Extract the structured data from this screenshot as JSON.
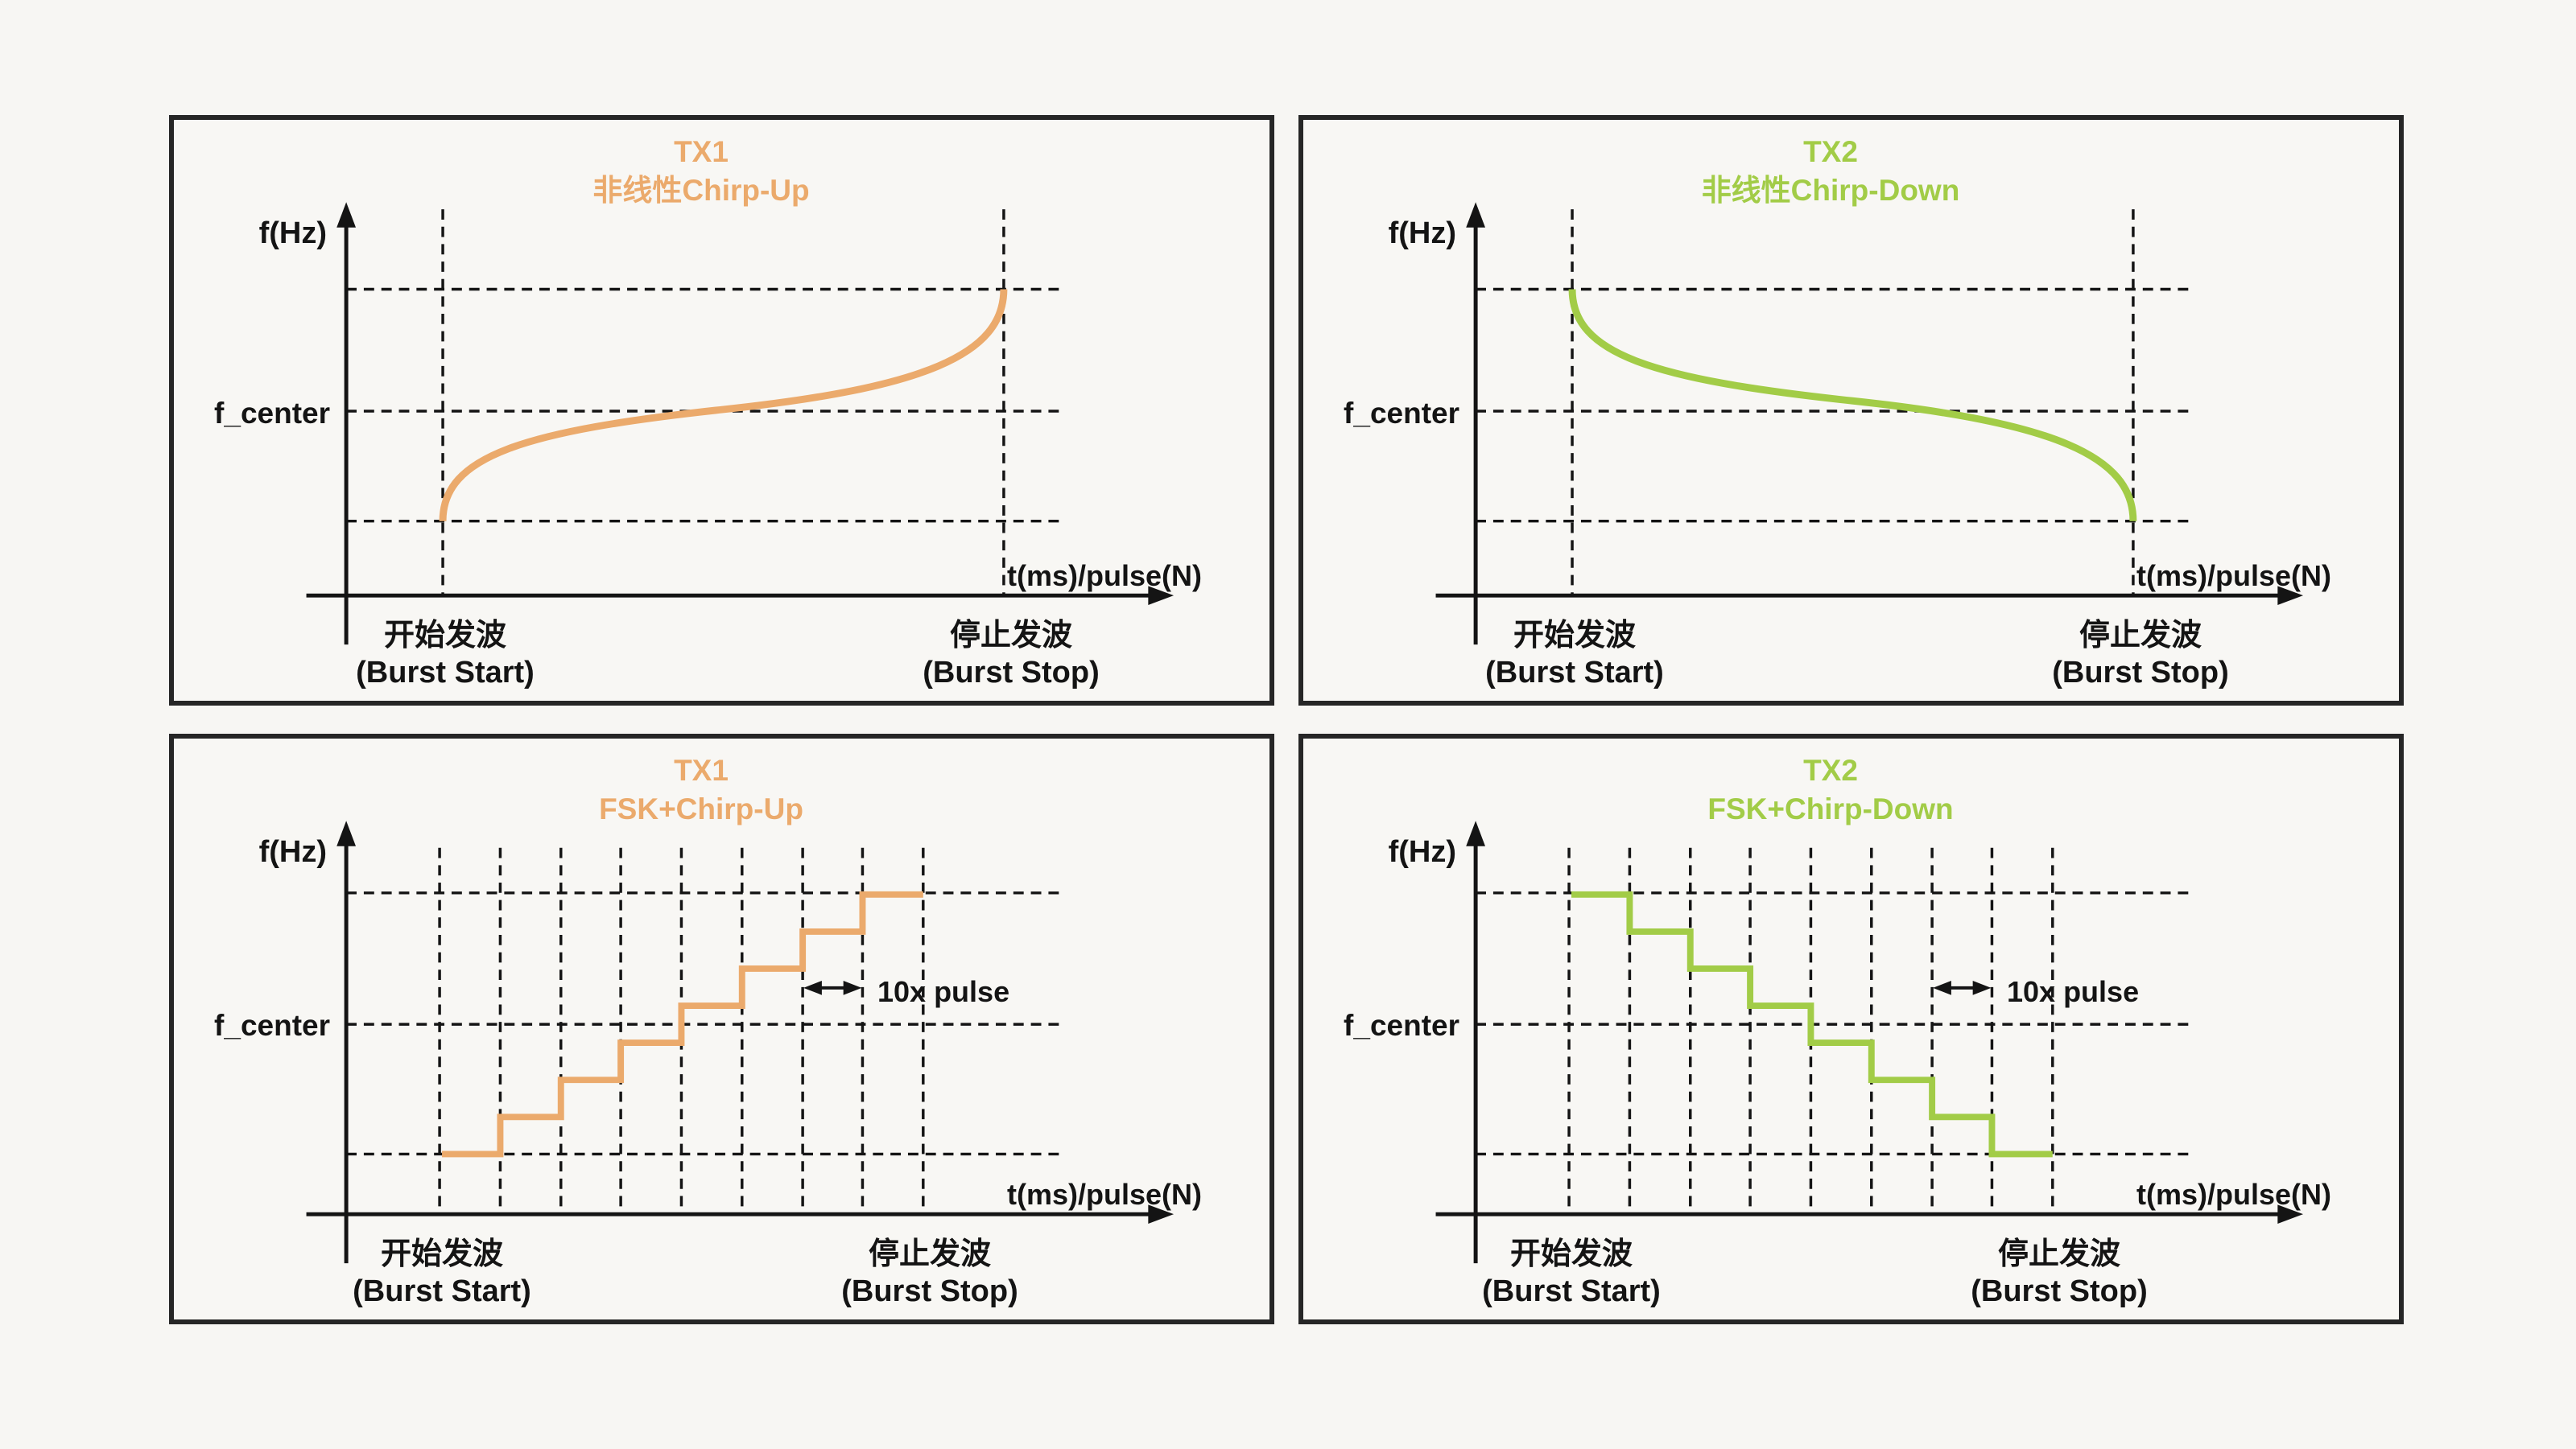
{
  "canvas": {
    "background": "#f7f6f3",
    "panel_background": "#f8f7f4",
    "panel_border_color": "#262626",
    "line_color": "#141414"
  },
  "colors": {
    "tx1": "#ebaa6c",
    "tx2": "#a2cc47"
  },
  "labels": {
    "y_axis": "f(Hz)",
    "x_axis": "t(ms)/pulse(N)",
    "f_center": "f_center",
    "burst_start_zh": "开始发波",
    "burst_start_en": "(Burst Start)",
    "burst_stop_zh": "停止发波",
    "burst_stop_en": "(Burst Stop)",
    "pulse_annotation": "10x pulse"
  },
  "panels": [
    {
      "id": "tx1-nonlinear-chirp-up",
      "title_line1": "TX1",
      "title_line2": "非线性Chirp-Up",
      "color_key": "tx1",
      "waveform": "nonlinear-chirp-up",
      "grid": "burst"
    },
    {
      "id": "tx2-nonlinear-chirp-down",
      "title_line1": "TX2",
      "title_line2": "非线性Chirp-Down",
      "color_key": "tx2",
      "waveform": "nonlinear-chirp-down",
      "grid": "burst"
    },
    {
      "id": "tx1-fsk-chirp-up",
      "title_line1": "TX1",
      "title_line2": "FSK+Chirp-Up",
      "color_key": "tx1",
      "waveform": "fsk-chirp-up",
      "grid": "pulse",
      "steps": 8,
      "step_width_label": "10x pulse"
    },
    {
      "id": "tx2-fsk-chirp-down",
      "title_line1": "TX2",
      "title_line2": "FSK+Chirp-Down",
      "color_key": "tx2",
      "waveform": "fsk-chirp-down",
      "grid": "pulse",
      "steps": 8,
      "step_width_label": "10x pulse"
    }
  ]
}
